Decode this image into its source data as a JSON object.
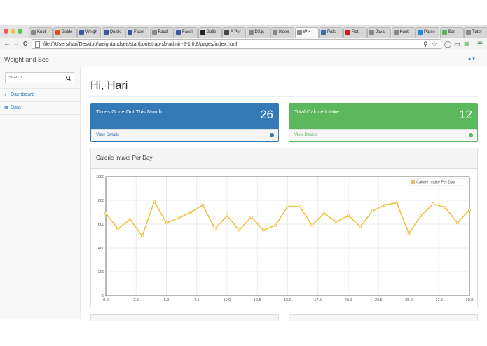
{
  "browser": {
    "tabs": [
      {
        "label": "Kuot",
        "icon": "page-icon",
        "color": "#888888"
      },
      {
        "label": "Golde",
        "icon": "b-icon",
        "color": "#e05020"
      },
      {
        "label": "Weigh",
        "icon": "facebook-icon",
        "color": "#3b5998"
      },
      {
        "label": "Quick",
        "icon": "facebook-icon",
        "color": "#3b5998"
      },
      {
        "label": "Facel",
        "icon": "facebook-icon",
        "color": "#3b5998"
      },
      {
        "label": "Facel",
        "icon": "page-icon",
        "color": "#888888"
      },
      {
        "label": "Facel",
        "icon": "facebook-icon",
        "color": "#3b5998"
      },
      {
        "label": "Galle",
        "icon": "github-icon",
        "color": "#222222"
      },
      {
        "label": "A Per",
        "icon": "codepen-icon",
        "color": "#444444"
      },
      {
        "label": "D3.js",
        "icon": "page-icon",
        "color": "#888888"
      },
      {
        "label": "index",
        "icon": "page-icon",
        "color": "#888888"
      },
      {
        "label": "W",
        "icon": "page-icon",
        "color": "#888888"
      },
      {
        "label": "Pats",
        "icon": "globe-icon",
        "color": "#3a6ea5"
      },
      {
        "label": "Flot",
        "icon": "globe-icon",
        "color": "#c02020"
      },
      {
        "label": "Javal",
        "icon": "page-icon",
        "color": "#888888"
      },
      {
        "label": "Kuot",
        "icon": "page-icon",
        "color": "#888888"
      },
      {
        "label": "Parse",
        "icon": "parse-icon",
        "color": "#1a8fe0"
      },
      {
        "label": "Sas",
        "icon": "sas-icon",
        "color": "#5ab55e"
      },
      {
        "label": "Tutor",
        "icon": "page-icon",
        "color": "#888888"
      }
    ],
    "active_tab_close": "×",
    "url": "file:///Users/hari/Desktop/weightandsee/startbootstrap-sb-admin-2-1.0.8/pages/index.html",
    "nav_back": "←",
    "nav_forward": "→",
    "nav_reload": "C"
  },
  "app": {
    "brand": "Weight and See",
    "user_icon": "user-icon",
    "search_placeholder": "Search...",
    "sidebar": [
      {
        "label": "Dashboard",
        "icon": "dashboard-icon"
      },
      {
        "label": "Data",
        "icon": "table-icon"
      }
    ],
    "page_title": "Hi, Hari",
    "cards": [
      {
        "label": "Times Gone Out This Month:",
        "value": "26",
        "footer": "View Details",
        "color": "#337ab7",
        "footer_color": "#337ab7"
      },
      {
        "label": "Total Calorie Intake:",
        "value": "12",
        "footer": "View Details",
        "color": "#5cb85c",
        "footer_color": "#5cb85c"
      }
    ],
    "chart_panel_title": "Calorie Intake Per Day"
  },
  "chart_data": {
    "type": "line",
    "title": "",
    "xlabel": "",
    "ylabel": "",
    "xlim": [
      0,
      30
    ],
    "ylim": [
      0,
      1000
    ],
    "xticks": [
      "0.0",
      "2.5",
      "5.0",
      "7.5",
      "10.0",
      "12.5",
      "15.0",
      "17.5",
      "20.0",
      "22.5",
      "25.0",
      "27.5",
      "30.0"
    ],
    "yticks": [
      "0",
      "200",
      "400",
      "600",
      "800",
      "1000"
    ],
    "grid": true,
    "legend_position": "top-right",
    "series": [
      {
        "name": "Calorie Intake Per Day",
        "color": "#edc240",
        "x": [
          0,
          1,
          2,
          3,
          4,
          5,
          6,
          7,
          8,
          9,
          10,
          11,
          12,
          13,
          14,
          15,
          16,
          17,
          18,
          19,
          20,
          21,
          22,
          23,
          24,
          25,
          26,
          27,
          28,
          29,
          30
        ],
        "y": [
          690,
          560,
          640,
          500,
          790,
          610,
          650,
          700,
          760,
          560,
          670,
          550,
          660,
          550,
          590,
          750,
          750,
          590,
          690,
          620,
          670,
          580,
          710,
          760,
          780,
          520,
          670,
          770,
          740,
          610,
          720
        ]
      }
    ]
  }
}
